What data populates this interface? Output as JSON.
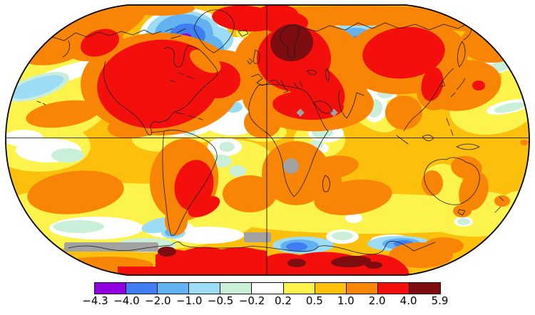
{
  "page": {
    "background": "#FFFFFF"
  },
  "chart_data": {
    "type": "heatmap",
    "subtype": "global-temperature-anomaly-map",
    "projection": "Robinson-style oval world map",
    "title": "",
    "gridlines": [
      "equator",
      "central meridian"
    ],
    "legend_position": "bottom",
    "colorbar": {
      "orientation": "horizontal",
      "boundaries": [
        -4.3,
        -4.0,
        -2.0,
        -1.0,
        -0.5,
        -0.2,
        0.2,
        0.5,
        1.0,
        2.0,
        4.0,
        5.9
      ],
      "tick_labels": [
        "−4.3",
        "−4.0",
        "−2.0",
        "−1.0",
        "−0.5",
        "−0.2",
        "0.2",
        "0.5",
        "1.0",
        "2.0",
        "4.0",
        "5.9"
      ],
      "segment_colors": [
        "#9000E0",
        "#3E7EF0",
        "#62B2F2",
        "#9CDCF4",
        "#C9EFD9",
        "#FFFFFF",
        "#FCF44C",
        "#FCC00C",
        "#F98507",
        "#F30F0C",
        "#7D0D10"
      ],
      "missing_data_color": "#A2A2A2"
    },
    "regions": [
      {
        "region": "Contiguous United States, northern Mexico and south-central Canada",
        "anomaly_bin": "2.0 to 4.0"
      },
      {
        "region": "Alaska / Yukon",
        "anomaly_bin": "2.0 to 4.0"
      },
      {
        "region": "Canadian Arctic Archipelago and Baffin Bay",
        "anomaly_bin": "-2.0 to -1.0"
      },
      {
        "region": "Small spot near Baffin Island",
        "anomaly_bin": "-4.3 to -4.0"
      },
      {
        "region": "Western and central Greenland",
        "anomaly_bin": "-1.0 to -0.2"
      },
      {
        "region": "Northeast Greenland and Greenland Sea",
        "anomaly_bin": "2.0 to 4.0"
      },
      {
        "region": "Scandinavia and Baltic",
        "anomaly_bin": "4.0 to 5.9"
      },
      {
        "region": "Europe, western Russia, Middle East, northeast Africa",
        "anomaly_bin": "2.0 to 4.0"
      },
      {
        "region": "Central Siberia (Kara / Ob region)",
        "anomaly_bin": "-2.0 to -1.0"
      },
      {
        "region": "Eastern Siberia",
        "anomaly_bin": "2.0 to 4.0"
      },
      {
        "region": "Bering Strait / Chukotka corner",
        "anomaly_bin": "2.0 to 4.0"
      },
      {
        "region": "Northeast Pacific diagonal streak",
        "anomaly_bin": "-1.0 to -0.2"
      },
      {
        "region": "Subtropical North Pacific blob",
        "anomaly_bin": "1.0 to 2.0"
      },
      {
        "region": "North Atlantic south of Greenland",
        "anomaly_bin": "-0.2 to 0.2"
      },
      {
        "region": "Caribbean / western tropical Atlantic",
        "anomaly_bin": "-0.2 to 0.5"
      },
      {
        "region": "Paraguay, Uruguay, southern Brazil, NE Argentina",
        "anomaly_bin": "2.0 to 4.0"
      },
      {
        "region": "South Pacific blob west of southern Chile",
        "anomaly_bin": "1.0 to 2.0"
      },
      {
        "region": "Southern and tropical Africa, Madagascar",
        "anomaly_bin": "0.5 to 2.0"
      },
      {
        "region": "Northern India and Indochina",
        "anomaly_bin": "1.0 to 2.0"
      },
      {
        "region": "Australia margins (east and west)",
        "anomaly_bin": "1.0 to 2.0"
      },
      {
        "region": "Small red spot in NW Pacific",
        "anomaly_bin": "2.0 to 4.0"
      },
      {
        "region": "Antarctic coastal patches (60E-150E)",
        "anomaly_bin": "-2.0 to -0.5"
      },
      {
        "region": "Antarctic interior band",
        "anomaly_bin": "2.0 to 5.9, spots above 4.0"
      },
      {
        "region": "Gray patches: Southern Ocean band, SW Africa, central Africa, near Arabia",
        "anomaly_bin": "no data"
      }
    ]
  }
}
